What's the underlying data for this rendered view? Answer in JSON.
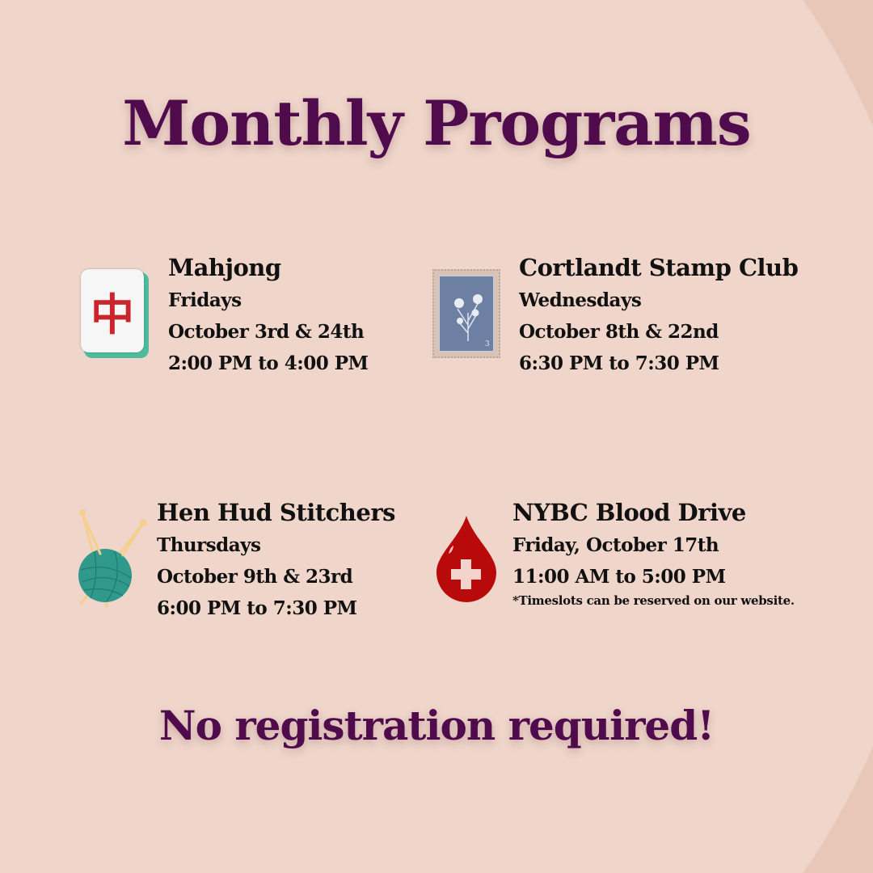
{
  "title": "Monthly Programs",
  "programs": [
    {
      "name": "Mahjong",
      "day": "Fridays",
      "dates": "October 3rd & 24th",
      "time": "2:00 PM to 4:00 PM",
      "icon": "mahjong-tile-icon"
    },
    {
      "name": "Cortlandt Stamp Club",
      "day": "Wednesdays",
      "dates": "October 8th & 22nd",
      "time": "6:30 PM to 7:30 PM",
      "icon": "postage-stamp-icon"
    },
    {
      "name": "Hen Hud Stitchers",
      "day": "Thursdays",
      "dates": "October 9th & 23rd",
      "time": "6:00 PM to 7:30 PM",
      "icon": "yarn-ball-icon"
    },
    {
      "name": "NYBC Blood Drive",
      "day": "Friday, October 17th",
      "time": "11:00 AM to 5:00 PM",
      "note": "*Timeslots can be reserved on our website.",
      "icon": "blood-drop-icon"
    }
  ],
  "mahjong_glyph": "中",
  "stamp_value": "3",
  "footer": "No registration required!",
  "colors": {
    "heading": "#4f0b4b",
    "background": "#efd5ca",
    "blood": "#b80a0a",
    "yarn": "#2f9a8c"
  }
}
